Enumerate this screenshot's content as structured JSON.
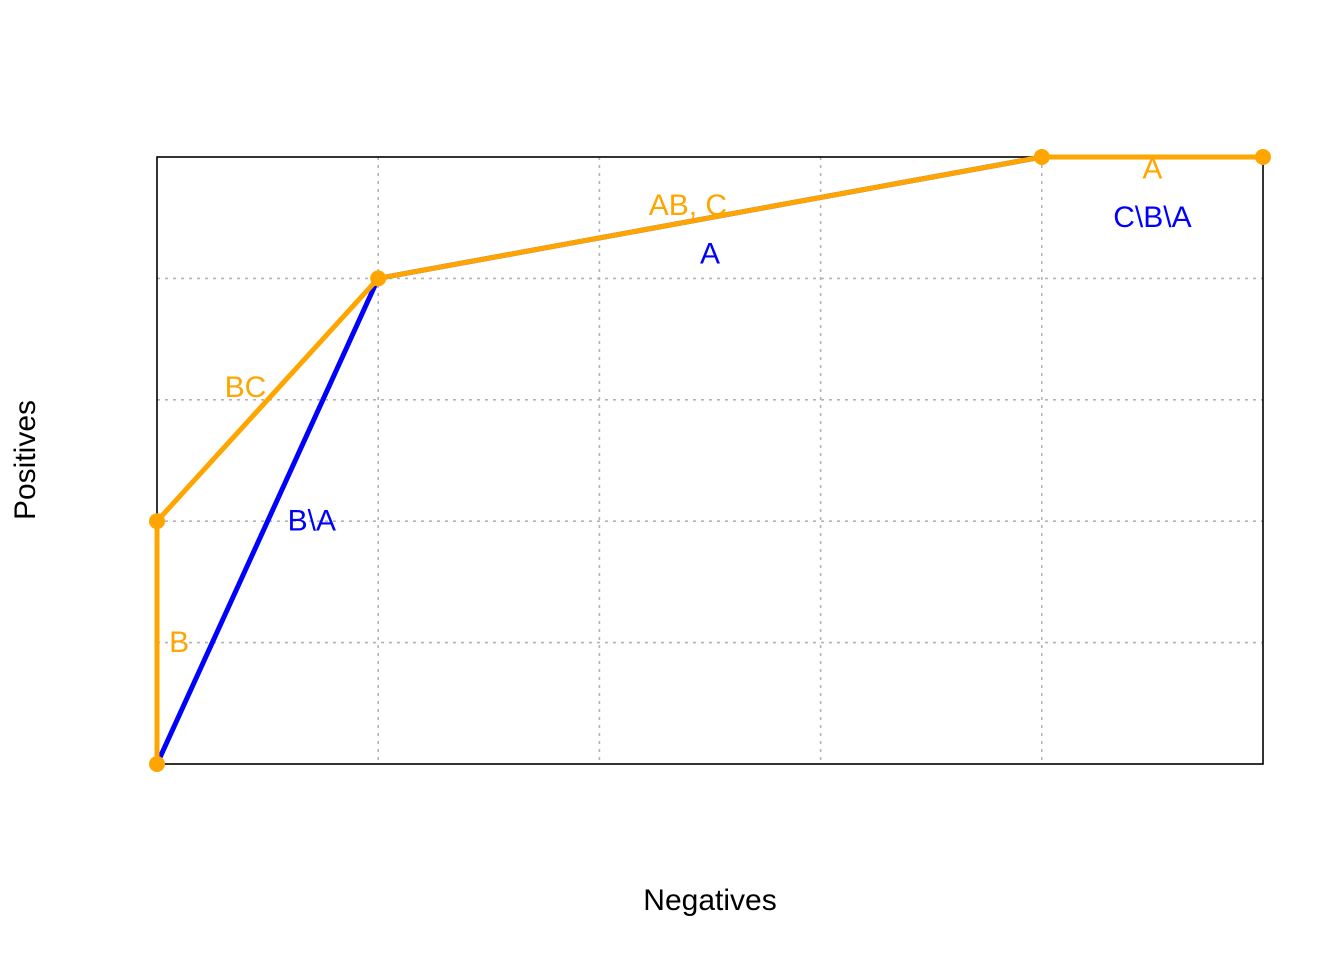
{
  "chart_data": {
    "type": "line",
    "xlabel": "Negatives",
    "ylabel": "Positives",
    "xlim": [
      0,
      5
    ],
    "ylim": [
      0,
      5
    ],
    "grid": true,
    "x_ticks": [
      1,
      2,
      3,
      4
    ],
    "y_ticks": [
      1,
      2,
      3,
      4
    ],
    "series": [
      {
        "color": "#0000ff",
        "points": [
          [
            0,
            0
          ],
          [
            1,
            4
          ],
          [
            4,
            5
          ],
          [
            5,
            5
          ]
        ],
        "markers": false
      },
      {
        "color": "#ffa500",
        "points": [
          [
            0,
            0
          ],
          [
            0,
            2
          ],
          [
            1,
            4
          ],
          [
            4,
            5
          ],
          [
            5,
            5
          ]
        ],
        "markers": true
      }
    ],
    "annotations": [
      {
        "text": "B",
        "x": 0.1,
        "y": 1.0,
        "color": "#ffa500"
      },
      {
        "text": "BC",
        "x": 0.4,
        "y": 3.1,
        "color": "#ffa500"
      },
      {
        "text": "B\\A",
        "x": 0.7,
        "y": 2.0,
        "color": "#0000ff"
      },
      {
        "text": "AB, C",
        "x": 2.4,
        "y": 4.6,
        "color": "#ffa500"
      },
      {
        "text": "A",
        "x": 2.5,
        "y": 4.2,
        "color": "#0000ff"
      },
      {
        "text": "A",
        "x": 4.5,
        "y": 4.9,
        "color": "#ffa500"
      },
      {
        "text": "C\\B\\A",
        "x": 4.5,
        "y": 4.5,
        "color": "#0000ff"
      }
    ]
  }
}
